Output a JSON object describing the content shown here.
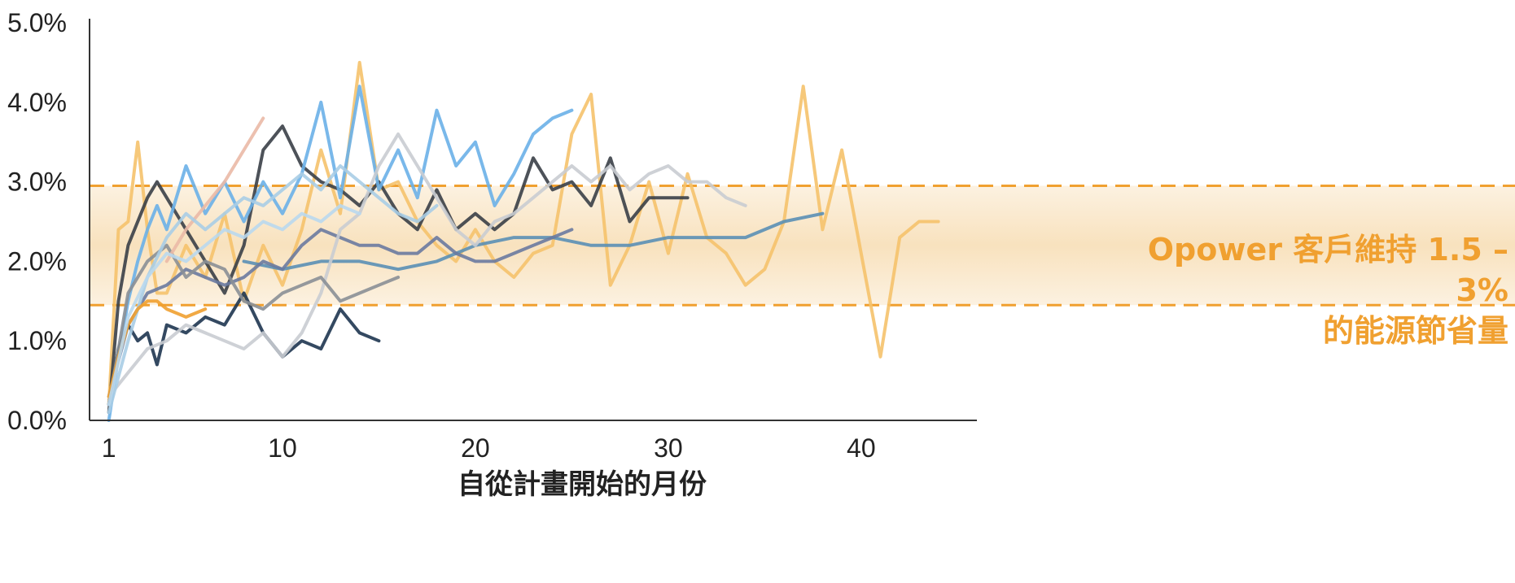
{
  "chart_data": {
    "type": "line",
    "title": "",
    "xlabel": "自從計畫開始的月份",
    "ylabel": "",
    "xlim": [
      0,
      46
    ],
    "ylim": [
      0,
      5
    ],
    "x_tick_labels": [
      "1",
      "10",
      "20",
      "30",
      "40"
    ],
    "x_ticks": [
      1,
      10,
      20,
      30,
      40
    ],
    "y_tick_labels": [
      "0.0%",
      "1.0%",
      "2.0%",
      "3.0%",
      "4.0%",
      "5.0%"
    ],
    "y_ticks": [
      0,
      1,
      2,
      3,
      4,
      5
    ],
    "band": {
      "low": 1.45,
      "high": 2.95,
      "color": "#f6d8a8",
      "line_color": "#f0a030",
      "annotation": [
        "Opower 客戶維持 1.5 –",
        "3%",
        "的能源節省量"
      ]
    },
    "series": [
      {
        "color": "#f5c26b",
        "x": [
          1,
          1.5,
          2,
          2.5,
          3,
          3.5,
          4,
          5,
          6,
          7,
          8,
          9,
          10,
          11,
          12,
          13,
          14,
          15,
          16,
          17,
          18,
          19,
          20,
          21,
          22,
          23,
          24,
          25,
          26,
          27,
          28,
          29,
          30,
          31,
          32,
          33,
          34,
          35,
          36,
          37,
          38,
          39,
          40,
          41,
          42,
          43,
          44
        ],
        "values": [
          0.2,
          2.4,
          2.5,
          3.5,
          2.4,
          1.6,
          1.6,
          2.2,
          1.8,
          2.6,
          1.5,
          2.2,
          1.7,
          2.4,
          3.4,
          2.6,
          4.5,
          2.9,
          3.0,
          2.5,
          2.2,
          2.0,
          2.4,
          2.0,
          1.8,
          2.1,
          2.2,
          3.6,
          4.1,
          1.7,
          2.2,
          3.0,
          2.1,
          3.1,
          2.3,
          2.1,
          1.7,
          1.9,
          2.5,
          4.2,
          2.4,
          3.4,
          2.1,
          0.8,
          2.3,
          2.5,
          2.5
        ]
      },
      {
        "color": "#3a3f47",
        "x": [
          1,
          1.5,
          2,
          2.5,
          3,
          3.5,
          4,
          5,
          6,
          7,
          8,
          9,
          10,
          11,
          12,
          13,
          14,
          15,
          16,
          17,
          18,
          19,
          20,
          21,
          22,
          23,
          24,
          25,
          26,
          27,
          28,
          29,
          30,
          31
        ],
        "values": [
          0.1,
          1.5,
          2.2,
          2.5,
          2.8,
          3.0,
          2.8,
          2.4,
          2.0,
          1.6,
          2.2,
          3.4,
          3.7,
          3.2,
          3.0,
          2.9,
          2.7,
          3.0,
          2.6,
          2.4,
          2.9,
          2.4,
          2.6,
          2.4,
          2.6,
          3.3,
          2.9,
          3.0,
          2.7,
          3.3,
          2.5,
          2.8,
          2.8,
          2.8
        ]
      },
      {
        "color": "#6ab0e8",
        "x": [
          1,
          1.5,
          2,
          2.5,
          3,
          3.5,
          4,
          5,
          6,
          7,
          8,
          9,
          10,
          11,
          12,
          13,
          14,
          15,
          16,
          17,
          18,
          19,
          20,
          21,
          22,
          23,
          24,
          25
        ],
        "values": [
          0.0,
          0.8,
          1.5,
          2.0,
          2.4,
          2.7,
          2.4,
          3.2,
          2.6,
          3.0,
          2.5,
          3.0,
          2.6,
          3.1,
          4.0,
          2.8,
          4.2,
          2.9,
          3.4,
          2.8,
          3.9,
          3.2,
          3.5,
          2.7,
          3.1,
          3.6,
          3.8,
          3.9
        ]
      },
      {
        "color": "#5a8fb5",
        "x": [
          8,
          10,
          12,
          14,
          16,
          18,
          20,
          22,
          24,
          26,
          28,
          30,
          32,
          34,
          36,
          38
        ],
        "values": [
          2.0,
          1.9,
          2.0,
          2.0,
          1.9,
          2.0,
          2.2,
          2.3,
          2.3,
          2.2,
          2.2,
          2.3,
          2.3,
          2.3,
          2.5,
          2.6
        ]
      },
      {
        "color": "#6a7aa0",
        "x": [
          1,
          2,
          3,
          4,
          5,
          6,
          7,
          8,
          9,
          10,
          11,
          12,
          13,
          14,
          15,
          16,
          17,
          18,
          19,
          20,
          21,
          22,
          23,
          24,
          25
        ],
        "values": [
          0.3,
          1.2,
          1.6,
          1.7,
          1.9,
          1.8,
          1.7,
          1.8,
          2.0,
          1.9,
          2.2,
          2.4,
          2.3,
          2.2,
          2.2,
          2.1,
          2.1,
          2.3,
          2.1,
          2.0,
          2.0,
          2.1,
          2.2,
          2.3,
          2.4
        ]
      },
      {
        "color": "#1e3550",
        "x": [
          1,
          1.5,
          2,
          2.5,
          3,
          3.5,
          4,
          5,
          6,
          7,
          8,
          9,
          10,
          11,
          12,
          13,
          14,
          15
        ],
        "values": [
          0.2,
          0.9,
          1.2,
          1.0,
          1.1,
          0.7,
          1.2,
          1.1,
          1.3,
          1.2,
          1.6,
          1.1,
          0.8,
          1.0,
          0.9,
          1.4,
          1.1,
          1.0
        ]
      },
      {
        "color": "#c9ccd2",
        "x": [
          1,
          2,
          3,
          4,
          5,
          6,
          7,
          8,
          9,
          10,
          11,
          12,
          13,
          14,
          15,
          16,
          17,
          18,
          19,
          20,
          21,
          22,
          23,
          24,
          25,
          26,
          27,
          28,
          29,
          30,
          31,
          32,
          33,
          34
        ],
        "values": [
          0.3,
          0.6,
          0.9,
          1.0,
          1.2,
          1.1,
          1.0,
          0.9,
          1.1,
          0.8,
          1.1,
          1.6,
          2.4,
          2.6,
          3.2,
          3.6,
          3.2,
          2.8,
          2.4,
          2.2,
          2.5,
          2.6,
          2.8,
          3.0,
          3.2,
          3.0,
          3.2,
          2.9,
          3.1,
          3.2,
          3.0,
          3.0,
          2.8,
          2.7
        ]
      },
      {
        "color": "#8a8f96",
        "x": [
          1,
          2,
          3,
          4,
          5,
          6,
          7,
          8,
          9,
          10,
          11,
          12,
          13,
          14,
          15,
          16
        ],
        "values": [
          0.2,
          1.6,
          2.0,
          2.2,
          1.8,
          2.0,
          1.9,
          1.5,
          1.4,
          1.6,
          1.7,
          1.8,
          1.5,
          1.6,
          1.7,
          1.8
        ]
      },
      {
        "color": "#eab9a6",
        "x": [
          4,
          5,
          6,
          7,
          8,
          9
        ],
        "values": [
          2.0,
          2.4,
          2.7,
          3.0,
          3.4,
          3.8
        ]
      },
      {
        "color": "#a9cde6",
        "x": [
          1,
          2,
          3,
          4,
          5,
          6,
          7,
          8,
          9,
          10,
          11,
          12,
          13,
          14,
          15,
          16,
          17,
          18
        ],
        "values": [
          0.1,
          1.0,
          1.8,
          2.3,
          2.6,
          2.4,
          2.6,
          2.8,
          2.7,
          2.9,
          3.1,
          2.9,
          3.2,
          3.0,
          2.8,
          2.6,
          2.5,
          2.7
        ]
      },
      {
        "color": "#f0a030",
        "x": [
          1,
          1.5,
          2,
          2.5,
          3,
          3.5,
          4,
          5,
          6
        ],
        "values": [
          0.3,
          0.8,
          1.2,
          1.4,
          1.5,
          1.5,
          1.4,
          1.3,
          1.4
        ]
      },
      {
        "color": "#b9d8ee",
        "x": [
          1,
          2,
          3,
          4,
          5,
          6,
          7,
          8,
          9,
          10,
          11,
          12,
          13,
          14
        ],
        "values": [
          0.2,
          1.3,
          1.8,
          2.1,
          2.0,
          2.2,
          2.4,
          2.3,
          2.5,
          2.4,
          2.6,
          2.5,
          2.7,
          2.6
        ]
      }
    ]
  }
}
